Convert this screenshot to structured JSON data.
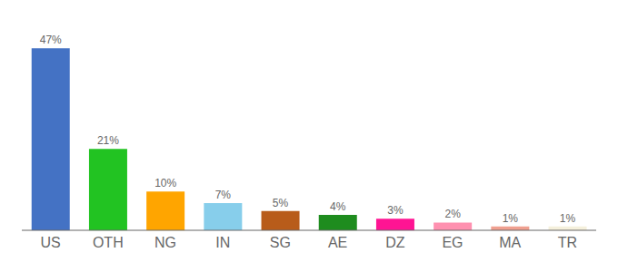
{
  "chart_data": {
    "type": "bar",
    "categories": [
      "US",
      "OTH",
      "NG",
      "IN",
      "SG",
      "AE",
      "DZ",
      "EG",
      "MA",
      "TR"
    ],
    "values": [
      47,
      21,
      10,
      7,
      5,
      4,
      3,
      2,
      1,
      1
    ],
    "value_labels": [
      "47%",
      "21%",
      "10%",
      "7%",
      "5%",
      "4%",
      "3%",
      "2%",
      "1%",
      "1%"
    ],
    "colors": [
      "#4472c4",
      "#22c322",
      "#ffa500",
      "#87ceeb",
      "#b85c1a",
      "#1e8c1e",
      "#ff1493",
      "#ff91b0",
      "#f0a090",
      "#f5f0dc"
    ],
    "ylim": [
      0,
      52
    ],
    "data_labels": true,
    "tick_labels": "x",
    "grid": false
  }
}
